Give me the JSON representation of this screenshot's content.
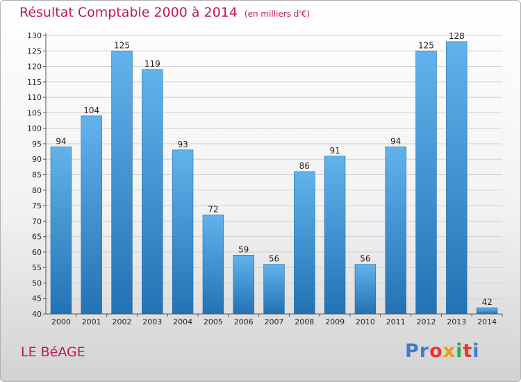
{
  "header": {
    "title": "Résultat Comptable 2000 à 2014",
    "unit": "(en milliers d'€)"
  },
  "footer": {
    "commune": "LE BéAGE",
    "logo": [
      "Pr",
      "o",
      "x",
      "i",
      "t",
      "i"
    ]
  },
  "colors": {
    "title": "#c0185a",
    "bar_top": "#62b2ec",
    "bar_bottom": "#2372b4",
    "grid": "#cfcfcf",
    "axis": "#555555"
  },
  "chart_data": {
    "type": "bar",
    "title": "Résultat Comptable 2000 à 2014",
    "ylim": [
      40,
      130
    ],
    "ytick_step": 5,
    "grid": true,
    "categories": [
      "2000",
      "2001",
      "2002",
      "2003",
      "2004",
      "2005",
      "2006",
      "2007",
      "2008",
      "2009",
      "2010",
      "2011",
      "2012",
      "2013",
      "2014"
    ],
    "values": [
      94,
      104,
      125,
      119,
      93,
      72,
      59,
      56,
      86,
      91,
      56,
      94,
      125,
      128,
      42
    ]
  }
}
